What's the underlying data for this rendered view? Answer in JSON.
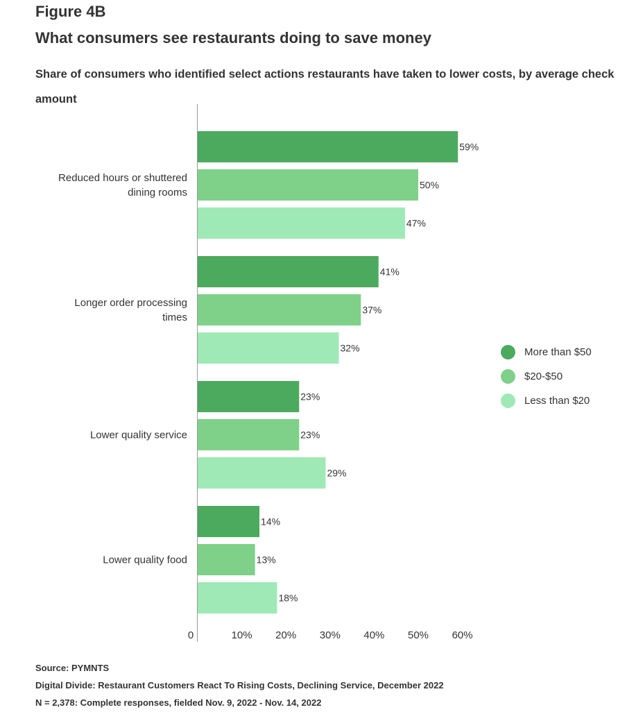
{
  "header": {
    "figure_label": "Figure 4B",
    "title": "What consumers see restaurants doing to save money",
    "subtitle": "Share of consumers who identified select actions restaurants have taken to lower costs, by average check amount"
  },
  "colors": {
    "more_than_50": "#4caa5f",
    "20_50": "#7fd088",
    "less_than_20": "#9fe9b6",
    "text": "#333333",
    "axis": "#999999"
  },
  "chart_data": {
    "type": "bar",
    "orientation": "horizontal",
    "title": "What consumers see restaurants doing to save money",
    "subtitle": "Share of consumers who identified select actions restaurants have taken to lower costs, by average check amount",
    "categories": [
      [
        "Reduced hours or shuttered",
        "dining rooms"
      ],
      [
        "Longer order processing",
        "times"
      ],
      [
        "Lower quality service"
      ],
      [
        "Lower quality food"
      ]
    ],
    "series": [
      {
        "name": "More than $50",
        "color": "#4caa5f",
        "values": [
          59,
          41,
          23,
          14
        ]
      },
      {
        "name": "$20-$50",
        "color": "#7fd088",
        "values": [
          50,
          37,
          23,
          13
        ]
      },
      {
        "name": "Less than $20",
        "color": "#9fe9b6",
        "values": [
          47,
          32,
          29,
          18
        ]
      }
    ],
    "xlim": [
      0,
      60
    ],
    "xticks": [
      0,
      10,
      20,
      30,
      40,
      50,
      60
    ],
    "xtick_labels": [
      "0",
      "10%",
      "20%",
      "30%",
      "40%",
      "50%",
      "60%"
    ],
    "value_suffix": "%",
    "grid": false,
    "legend_position": "right"
  },
  "footer": {
    "source": "Source: PYMNTS",
    "report": "Digital Divide: Restaurant Customers React To Rising Costs, Declining Service, December 2022",
    "sample": "N = 2,378: Complete responses, fielded Nov. 9, 2022 - Nov. 14, 2022"
  }
}
